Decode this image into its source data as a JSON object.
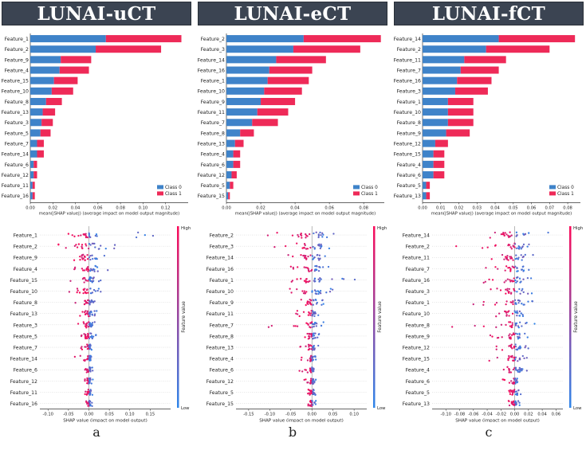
{
  "colors": {
    "class0": "#3f83c9",
    "class1": "#ee2a58",
    "title_bg": "#3b4452",
    "low": "#2f86ea",
    "high": "#fb0a59"
  },
  "common": {
    "bar_xlabel": "mean(|SHAP value|) (average impact on model output magnitude)",
    "bee_xlabel": "SHAP value (impact on model output)",
    "colorbar_title": "Feature value",
    "colorbar_high": "High",
    "colorbar_low": "Low",
    "legend": [
      "Class 0",
      "Class 1"
    ]
  },
  "panels": [
    {
      "title": "LUNAI-uCT",
      "letter": "a"
    },
    {
      "title": "LUNAI-eCT",
      "letter": "b"
    },
    {
      "title": "LUNAI-fCT",
      "letter": "c"
    }
  ],
  "chart_data": [
    {
      "type": "bar",
      "panel": "LUNAI-uCT",
      "stacked": true,
      "categories": [
        "Feature_1",
        "Feature_2",
        "Feature_9",
        "Feature_4",
        "Feature_15",
        "Feature_10",
        "Feature_8",
        "Feature_13",
        "Feature_3",
        "Feature_5",
        "Feature_7",
        "Feature_14",
        "Feature_6",
        "Feature_12",
        "Feature_11",
        "Feature_16"
      ],
      "series": [
        {
          "name": "Class 0",
          "values": [
            0.067,
            0.058,
            0.027,
            0.026,
            0.021,
            0.019,
            0.014,
            0.011,
            0.01,
            0.009,
            0.006,
            0.006,
            0.003,
            0.003,
            0.002,
            0.002
          ]
        },
        {
          "name": "Class 1",
          "values": [
            0.067,
            0.058,
            0.027,
            0.026,
            0.021,
            0.019,
            0.014,
            0.011,
            0.01,
            0.009,
            0.006,
            0.006,
            0.003,
            0.003,
            0.002,
            0.002
          ]
        }
      ],
      "xlim": [
        0,
        0.14
      ],
      "xticks": [
        "0.00",
        "0.02",
        "0.04",
        "0.06",
        "0.08",
        "0.10",
        "0.12"
      ],
      "legend": "bottom-right"
    },
    {
      "type": "scatter",
      "subtype": "beeswarm",
      "panel": "LUNAI-uCT",
      "categories": [
        "Feature_1",
        "Feature_2",
        "Feature_9",
        "Feature_4",
        "Feature_15",
        "Feature_10",
        "Feature_8",
        "Feature_13",
        "Feature_3",
        "Feature_5",
        "Feature_7",
        "Feature_14",
        "Feature_6",
        "Feature_12",
        "Feature_11",
        "Feature_16"
      ],
      "ranges": [
        [
          -0.05,
          0.17
        ],
        [
          -0.08,
          0.07
        ],
        [
          -0.05,
          0.04
        ],
        [
          -0.04,
          0.05
        ],
        [
          -0.07,
          0.03
        ],
        [
          -0.05,
          0.03
        ],
        [
          -0.04,
          0.02
        ],
        [
          -0.03,
          0.02
        ],
        [
          -0.03,
          0.02
        ],
        [
          -0.02,
          0.02
        ],
        [
          -0.02,
          0.01
        ],
        [
          -0.04,
          0.01
        ],
        [
          -0.01,
          0.01
        ],
        [
          -0.01,
          0.01
        ],
        [
          -0.01,
          0.01
        ],
        [
          -0.01,
          0.01
        ]
      ],
      "xlim": [
        -0.12,
        0.2
      ],
      "xticks": [
        "-0.10",
        "-0.05",
        "0.00",
        "0.05",
        "0.10",
        "0.15"
      ]
    },
    {
      "type": "bar",
      "panel": "LUNAI-eCT",
      "stacked": true,
      "categories": [
        "Feature_2",
        "Feature_3",
        "Feature_14",
        "Feature_16",
        "Feature_1",
        "Feature_10",
        "Feature_9",
        "Feature_11",
        "Feature_7",
        "Feature_8",
        "Feature_13",
        "Feature_4",
        "Feature_6",
        "Feature_12",
        "Feature_5",
        "Feature_15"
      ],
      "series": [
        {
          "name": "Class 0",
          "values": [
            0.045,
            0.039,
            0.029,
            0.025,
            0.024,
            0.022,
            0.02,
            0.018,
            0.015,
            0.008,
            0.005,
            0.004,
            0.004,
            0.003,
            0.002,
            0.001
          ]
        },
        {
          "name": "Class 1",
          "values": [
            0.045,
            0.039,
            0.029,
            0.025,
            0.024,
            0.022,
            0.02,
            0.018,
            0.015,
            0.008,
            0.005,
            0.004,
            0.004,
            0.003,
            0.002,
            0.001
          ]
        }
      ],
      "xlim": [
        0,
        0.092
      ],
      "xticks": [
        "0.00",
        "0.02",
        "0.04",
        "0.06",
        "0.08"
      ],
      "legend": "bottom-right"
    },
    {
      "type": "scatter",
      "subtype": "beeswarm",
      "panel": "LUNAI-eCT",
      "categories": [
        "Feature_2",
        "Feature_3",
        "Feature_14",
        "Feature_16",
        "Feature_1",
        "Feature_10",
        "Feature_9",
        "Feature_11",
        "Feature_7",
        "Feature_8",
        "Feature_13",
        "Feature_4",
        "Feature_6",
        "Feature_12",
        "Feature_5",
        "Feature_15"
      ],
      "ranges": [
        [
          -0.16,
          0.06
        ],
        [
          -0.09,
          0.05
        ],
        [
          -0.07,
          0.05
        ],
        [
          -0.06,
          0.04
        ],
        [
          -0.05,
          0.12
        ],
        [
          -0.06,
          0.05
        ],
        [
          -0.04,
          0.03
        ],
        [
          -0.06,
          0.02
        ],
        [
          -0.11,
          0.03
        ],
        [
          -0.03,
          0.02
        ],
        [
          -0.03,
          0.02
        ],
        [
          -0.03,
          0.01
        ],
        [
          -0.03,
          0.01
        ],
        [
          -0.02,
          0.01
        ],
        [
          -0.01,
          0.01
        ],
        [
          -0.01,
          0.01
        ]
      ],
      "xlim": [
        -0.18,
        0.13
      ],
      "xticks": [
        "-0.15",
        "-0.10",
        "-0.05",
        "0.00",
        "0.05",
        "0.10"
      ]
    },
    {
      "type": "bar",
      "panel": "LUNAI-fCT",
      "stacked": true,
      "categories": [
        "Feature_14",
        "Feature_2",
        "Feature_11",
        "Feature_7",
        "Feature_16",
        "Feature_3",
        "Feature_1",
        "Feature_10",
        "Feature_8",
        "Feature_9",
        "Feature_12",
        "Feature_15",
        "Feature_4",
        "Feature_6",
        "Feature_5",
        "Feature_13"
      ],
      "series": [
        {
          "name": "Class 0",
          "values": [
            0.042,
            0.035,
            0.023,
            0.021,
            0.019,
            0.018,
            0.014,
            0.014,
            0.014,
            0.013,
            0.007,
            0.006,
            0.006,
            0.006,
            0.002,
            0.002
          ]
        },
        {
          "name": "Class 1",
          "values": [
            0.042,
            0.035,
            0.023,
            0.021,
            0.019,
            0.018,
            0.014,
            0.014,
            0.014,
            0.013,
            0.007,
            0.006,
            0.006,
            0.006,
            0.002,
            0.002
          ]
        }
      ],
      "xlim": [
        0,
        0.087
      ],
      "xticks": [
        "0.00",
        "0.01",
        "0.02",
        "0.03",
        "0.04",
        "0.05",
        "0.06",
        "0.07",
        "0.08"
      ],
      "legend": "bottom-right"
    },
    {
      "type": "scatter",
      "subtype": "beeswarm",
      "panel": "LUNAI-fCT",
      "categories": [
        "Feature_14",
        "Feature_2",
        "Feature_11",
        "Feature_7",
        "Feature_16",
        "Feature_3",
        "Feature_1",
        "Feature_10",
        "Feature_8",
        "Feature_9",
        "Feature_12",
        "Feature_15",
        "Feature_4",
        "Feature_6",
        "Feature_5",
        "Feature_13"
      ],
      "ranges": [
        [
          -0.04,
          0.05
        ],
        [
          -0.09,
          0.03
        ],
        [
          -0.06,
          0.03
        ],
        [
          -0.05,
          0.03
        ],
        [
          -0.05,
          0.03
        ],
        [
          -0.04,
          0.03
        ],
        [
          -0.07,
          0.03
        ],
        [
          -0.04,
          0.03
        ],
        [
          -0.1,
          0.03
        ],
        [
          -0.04,
          0.02
        ],
        [
          -0.04,
          0.02
        ],
        [
          -0.04,
          0.02
        ],
        [
          -0.02,
          0.02
        ],
        [
          -0.02,
          0.01
        ],
        [
          -0.01,
          0.01
        ],
        [
          -0.01,
          0.01
        ]
      ],
      "xlim": [
        -0.12,
        0.07
      ],
      "xticks": [
        "-0.10",
        "-0.08",
        "-0.06",
        "-0.04",
        "-0.02",
        "0.00",
        "0.02",
        "0.04",
        "0.06"
      ]
    }
  ]
}
